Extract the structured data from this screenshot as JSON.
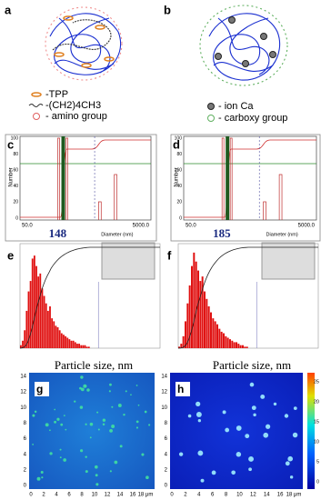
{
  "panels": [
    {
      "label": "a",
      "legend": [
        "-TPP",
        "-(CH2)4CH3",
        "- amino group"
      ]
    },
    {
      "label": "b",
      "legend": [
        "- ion  Ca",
        "- carboxy group"
      ]
    },
    {
      "label": "c",
      "y_label": "Number",
      "x_label": "Diameter (nm)",
      "x_start": "50.0",
      "x_end": "5000.0",
      "yticks": [
        "100",
        "80",
        "60",
        "40",
        "20",
        "0"
      ],
      "peak": "148"
    },
    {
      "label": "d",
      "y_label": "Number",
      "x_label": "Diameter (nm)",
      "x_start": "50.0",
      "x_end": "5000.0",
      "yticks": [
        "100",
        "80",
        "60",
        "40",
        "20",
        "0"
      ],
      "peak": "185"
    },
    {
      "label": "e",
      "counts": [
        2,
        5,
        12,
        25,
        38,
        45,
        60,
        62,
        55,
        48,
        50,
        40,
        35,
        30,
        25,
        28,
        20,
        18,
        15,
        14,
        12,
        10,
        9,
        8,
        7,
        6,
        5,
        5,
        4,
        3,
        3,
        2,
        2,
        2,
        1,
        1
      ],
      "x_label": "Particle size, nm"
    },
    {
      "label": "f",
      "counts": [
        1,
        3,
        8,
        18,
        30,
        42,
        55,
        64,
        58,
        52,
        45,
        48,
        38,
        33,
        28,
        24,
        20,
        18,
        16,
        13,
        11,
        10,
        8,
        7,
        6,
        5,
        4,
        4,
        3,
        2,
        2,
        1,
        1
      ],
      "x_label": "Particle size, nm"
    },
    {
      "label": "g",
      "yticks": [
        "14",
        "12",
        "10",
        "8",
        "6",
        "4",
        "2",
        "0"
      ],
      "xticks": [
        "0",
        "2",
        "4",
        "6",
        "8",
        "10",
        "12",
        "14",
        "16",
        "18 μm"
      ]
    },
    {
      "label": "h",
      "yticks": [
        "14",
        "12",
        "10",
        "8",
        "6",
        "4",
        "2",
        "0"
      ],
      "xticks": [
        "0",
        "2",
        "4",
        "6",
        "8",
        "10",
        "12",
        "14",
        "16",
        "18 μm"
      ],
      "colorbar": [
        "25",
        "20",
        "15",
        "10",
        "5",
        "0"
      ]
    }
  ]
}
